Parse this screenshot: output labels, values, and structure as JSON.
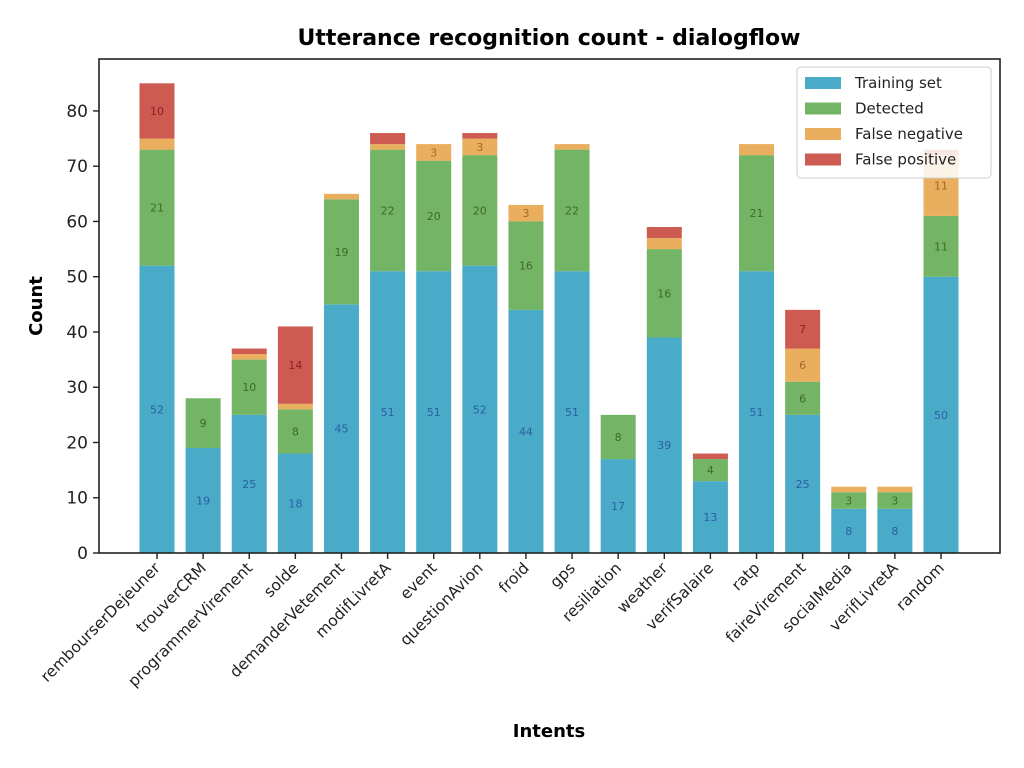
{
  "chart_data": {
    "type": "bar",
    "stacked": true,
    "title": "Utterance recognition count - dialogflow",
    "xlabel": "Intents",
    "ylabel": "Count",
    "ylim": [
      0,
      89.4
    ],
    "yticks": [
      0,
      10,
      20,
      30,
      40,
      50,
      60,
      70,
      80
    ],
    "grid": false,
    "legend_position": "top-right",
    "categories": [
      "rembourserDejeuner",
      "trouverCRM",
      "programmerVirement",
      "solde",
      "demanderVetement",
      "modifLivretA",
      "event",
      "questionAvion",
      "froid",
      "gps",
      "resiliation",
      "weather",
      "verifSalaire",
      "ratp",
      "faireVirement",
      "socialMedia",
      "verifLivretA",
      "random"
    ],
    "series": [
      {
        "name": "Training set",
        "color": "#4aabc8",
        "label_color": "#2b5fa6",
        "values": [
          52,
          19,
          25,
          18,
          45,
          51,
          51,
          52,
          44,
          51,
          17,
          39,
          13,
          51,
          25,
          8,
          8,
          50
        ]
      },
      {
        "name": "Detected",
        "color": "#73b564",
        "label_color": "#3f6a2d",
        "values": [
          21,
          9,
          10,
          8,
          19,
          22,
          20,
          20,
          16,
          22,
          8,
          16,
          4,
          21,
          6,
          3,
          3,
          11
        ]
      },
      {
        "name": "False negative",
        "color": "#e9ae5e",
        "label_color": "#a9662a",
        "values": [
          2,
          0,
          1,
          1,
          1,
          1,
          3,
          3,
          3,
          1,
          0,
          2,
          0,
          2,
          6,
          1,
          1,
          11
        ]
      },
      {
        "name": "False positive",
        "color": "#cd5b52",
        "label_color": "#8e2020",
        "values": [
          10,
          0,
          1,
          14,
          0,
          2,
          0,
          1,
          0,
          0,
          0,
          2,
          1,
          0,
          7,
          0,
          0,
          1
        ]
      }
    ],
    "data_labels_min": 3
  }
}
